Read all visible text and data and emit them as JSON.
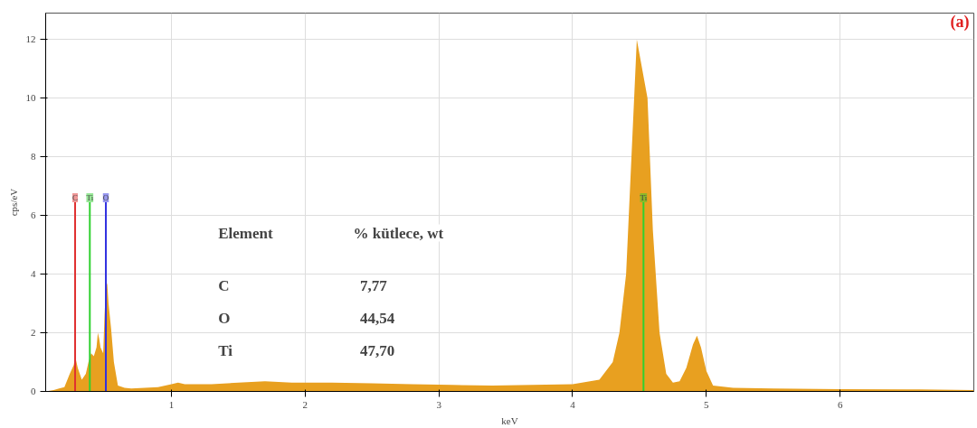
{
  "chart_data": {
    "type": "area",
    "xlabel": "keV",
    "ylabel": "cps/eV",
    "x": [
      0.06,
      0.12,
      0.16,
      0.2,
      0.24,
      0.27,
      0.28,
      0.3,
      0.33,
      0.36,
      0.38,
      0.4,
      0.42,
      0.44,
      0.45,
      0.46,
      0.47,
      0.49,
      0.5,
      0.51,
      0.52,
      0.53,
      0.55,
      0.57,
      0.6,
      0.65,
      0.7,
      0.8,
      0.9,
      1.0,
      1.05,
      1.1,
      1.3,
      1.5,
      1.7,
      1.9,
      2.2,
      2.5,
      2.8,
      3.1,
      3.4,
      3.7,
      4.0,
      4.2,
      4.3,
      4.35,
      4.4,
      4.45,
      4.48,
      4.5,
      4.53,
      4.56,
      4.6,
      4.65,
      4.7,
      4.75,
      4.8,
      4.85,
      4.9,
      4.93,
      4.96,
      5.0,
      5.05,
      5.2,
      5.5,
      6.0,
      6.5,
      7.0
    ],
    "series": [
      {
        "color": "#e8a020",
        "values": [
          0,
          0.05,
          0.1,
          0.15,
          0.6,
          0.9,
          1.2,
          0.8,
          0.4,
          0.6,
          1.0,
          1.3,
          1.2,
          1.5,
          2.0,
          1.8,
          1.5,
          1.3,
          2.6,
          3.5,
          3.7,
          3.0,
          2.1,
          1.0,
          0.2,
          0.12,
          0.1,
          0.12,
          0.15,
          0.25,
          0.3,
          0.25,
          0.25,
          0.3,
          0.35,
          0.3,
          0.3,
          0.28,
          0.25,
          0.22,
          0.2,
          0.22,
          0.25,
          0.4,
          1.0,
          2.0,
          4.0,
          9.0,
          12.0,
          null,
          null,
          10.0,
          5.5,
          2.0,
          0.6,
          0.3,
          0.35,
          0.8,
          1.6,
          1.9,
          1.5,
          0.7,
          0.2,
          0.12,
          0.1,
          0.08,
          0.07,
          0.05
        ]
      }
    ],
    "ref_lines": [
      {
        "axis": "x",
        "value": 0.28,
        "label": "C",
        "color": "#e03030"
      },
      {
        "axis": "x",
        "value": 0.39,
        "label": "Ti",
        "color": "#30d030"
      },
      {
        "axis": "x",
        "value": 0.51,
        "label": "O",
        "color": "#3030e0"
      },
      {
        "axis": "x",
        "value": 4.53,
        "label": "Ti",
        "color": "#30d030"
      }
    ],
    "annotations": [
      "(a)",
      "Element",
      "% kütlece, wt",
      "C",
      "7,77",
      "O",
      "44,54",
      "Ti",
      "47,70"
    ],
    "xlim": [
      0.06,
      7.0
    ],
    "ylim": [
      0,
      12.9
    ],
    "xticks": [
      1,
      2,
      3,
      4,
      5,
      6
    ],
    "yticks": [
      0,
      2,
      4,
      6,
      8,
      10,
      12
    ],
    "grid": true
  }
}
